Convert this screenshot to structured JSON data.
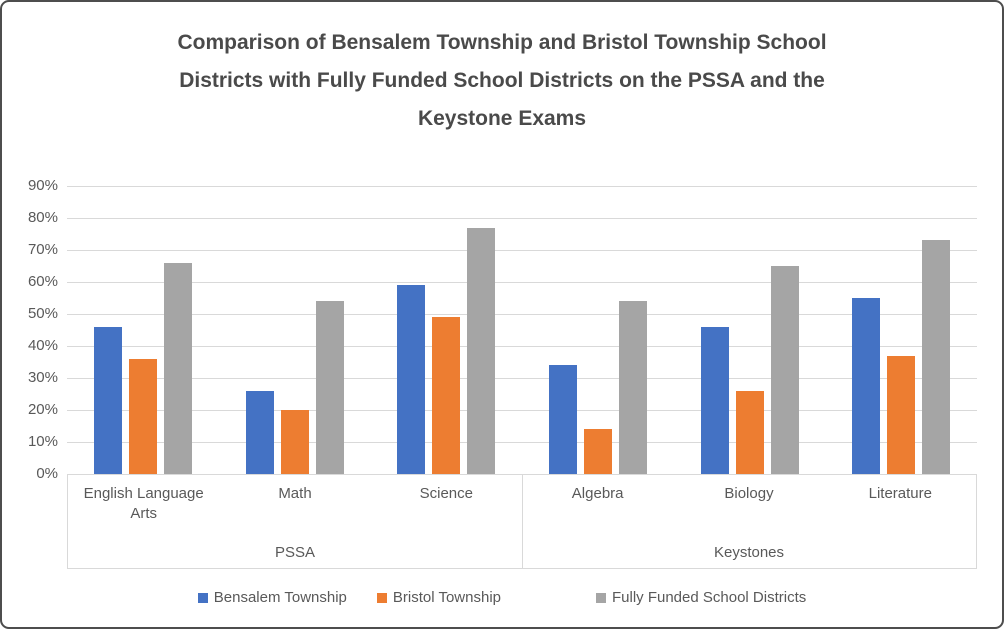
{
  "title": {
    "text": "Comparison of Bensalem Township and Bristol Township School Districts with Fully Funded School Districts on the PSSA and the Keystone Exams",
    "lines": [
      "Comparison of Bensalem Township and Bristol Township School",
      "Districts with Fully Funded School Districts on the PSSA and the",
      "Keystone Exams"
    ]
  },
  "chart_data": {
    "type": "bar",
    "categories": [
      "English Language Arts",
      "Math",
      "Science",
      "Algebra",
      "Biology",
      "Literature"
    ],
    "groups": [
      {
        "label": "PSSA",
        "categories": [
          "English Language Arts",
          "Math",
          "Science"
        ]
      },
      {
        "label": "Keystones",
        "categories": [
          "Algebra",
          "Biology",
          "Literature"
        ]
      }
    ],
    "series": [
      {
        "name": "Bensalem Township",
        "color": "#4472C4",
        "values": [
          46,
          26,
          59,
          34,
          46,
          55
        ]
      },
      {
        "name": "Bristol Township",
        "color": "#ED7D31",
        "values": [
          36,
          20,
          49,
          14,
          26,
          37
        ]
      },
      {
        "name": "Fully Funded School Districts",
        "color": "#A5A5A5",
        "values": [
          66,
          54,
          77,
          54,
          65,
          73
        ]
      }
    ],
    "xlabel": "",
    "ylabel": "",
    "ylim": [
      0,
      90
    ],
    "ytick_step": 10,
    "yticks": [
      "90%",
      "80%",
      "70%",
      "60%",
      "50%",
      "40%",
      "30%",
      "20%",
      "10%",
      "0%"
    ],
    "grid": true,
    "legend_position": "bottom"
  },
  "legend": {
    "items": [
      {
        "label": "Bensalem Township",
        "color": "#4472C4"
      },
      {
        "label": "Bristol Township",
        "color": "#ED7D31"
      },
      {
        "label": "Fully Funded School Districts",
        "color": "#A5A5A5"
      }
    ]
  },
  "colors": {
    "series_blue": "#4472C4",
    "series_orange": "#ED7D31",
    "series_gray": "#A5A5A5",
    "gridline": "#D9D9D9",
    "axis_text": "#595959",
    "title_text": "#4A4A4A",
    "window_border": "#4D4D4D"
  }
}
